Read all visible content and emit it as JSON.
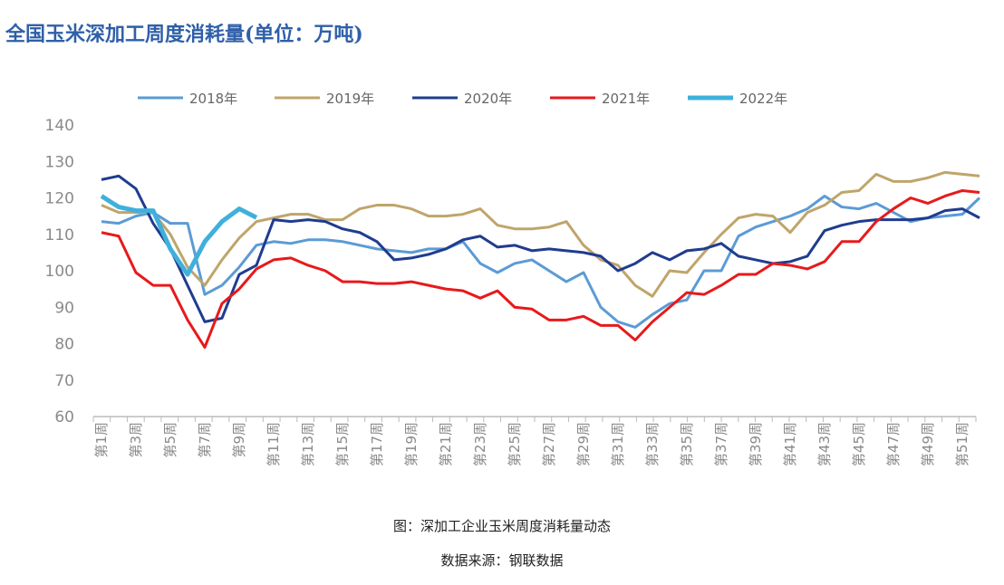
{
  "title": "全国玉米深加工周度消耗量(单位：万吨)",
  "caption": "图：深加工企业玉米周度消耗量动态",
  "source": "数据来源：钢联数据",
  "chart_data": {
    "type": "line",
    "title": "全国玉米深加工周度消耗量(单位：万吨)",
    "ylim": [
      60,
      140
    ],
    "yticks": [
      60,
      70,
      80,
      90,
      100,
      110,
      120,
      130,
      140
    ],
    "x_tick_labels": [
      "第1周",
      "第3周",
      "第5周",
      "第7周",
      "第9周",
      "第11周",
      "第13周",
      "第15周",
      "第17周",
      "第19周",
      "第21周",
      "第23周",
      "第25周",
      "第27周",
      "第29周",
      "第31周",
      "第33周",
      "第35周",
      "第37周",
      "第39周",
      "第41周",
      "第43周",
      "第45周",
      "第47周",
      "第49周",
      "第51周"
    ],
    "legend": "top",
    "grid": false,
    "series": [
      {
        "name": "2018年",
        "color": "#5b9bd5",
        "values": [
          113.5,
          113,
          115,
          116,
          113,
          113,
          93.5,
          96,
          101,
          107,
          108,
          107.5,
          108.5,
          108.5,
          108,
          107,
          106,
          105.5,
          105,
          106,
          106,
          108,
          102,
          99.5,
          102,
          103,
          100,
          97,
          99.5,
          90,
          86,
          84.5,
          88,
          91,
          92,
          100,
          100,
          109.5,
          112,
          113.5,
          115,
          117,
          120.5,
          117.5,
          117,
          118.5,
          116,
          113.5,
          114.5,
          115,
          115.5,
          120
        ]
      },
      {
        "name": "2019年",
        "color": "#bfa56b",
        "values": [
          118,
          116,
          116,
          116,
          110,
          101,
          96,
          103,
          109,
          113.5,
          114.5,
          115.5,
          115.5,
          114,
          114,
          117,
          118,
          118,
          117,
          115,
          115,
          115.5,
          117,
          112.5,
          111.5,
          111.5,
          112,
          113.5,
          107,
          103,
          101.5,
          96,
          93,
          100,
          99.5,
          105,
          110,
          114.5,
          115.5,
          115,
          110.5,
          116,
          118,
          121.5,
          122,
          126.5,
          124.5,
          124.5,
          125.5,
          127,
          126.5,
          126
        ]
      },
      {
        "name": "2020年",
        "color": "#1f3c8f",
        "values": [
          125,
          126,
          122.5,
          113,
          106,
          96,
          86,
          87,
          99,
          101.5,
          114,
          113.5,
          114,
          113.5,
          111.5,
          110.5,
          108,
          103,
          103.5,
          104.5,
          106,
          108.5,
          109.5,
          106.5,
          107,
          105.5,
          106,
          105.5,
          105,
          104,
          100,
          102,
          105,
          103,
          105.5,
          106,
          107.5,
          104,
          103,
          102,
          102.5,
          104,
          111,
          112.5,
          113.5,
          114,
          114,
          114,
          114.5,
          116.5,
          117,
          114.5
        ]
      },
      {
        "name": "2021年",
        "color": "#e8191b",
        "values": [
          110.5,
          109.5,
          99.5,
          96,
          96,
          86.5,
          79,
          91,
          95,
          100.5,
          103,
          103.5,
          101.5,
          100,
          97,
          97,
          96.5,
          96.5,
          97,
          96,
          95,
          94.5,
          92.5,
          94.5,
          90,
          89.5,
          86.5,
          86.5,
          87.5,
          85,
          85,
          81,
          86,
          90,
          94,
          93.5,
          96,
          99,
          99,
          102,
          101.5,
          100.5,
          102.5,
          108,
          108,
          113.5,
          117,
          120,
          118.5,
          120.5,
          122,
          121.5
        ]
      },
      {
        "name": "2022年",
        "color": "#3fb0dc",
        "values": [
          120.5,
          117.5,
          116.5,
          116.5,
          106,
          99,
          108,
          113.5,
          117,
          114.6
        ]
      }
    ]
  }
}
